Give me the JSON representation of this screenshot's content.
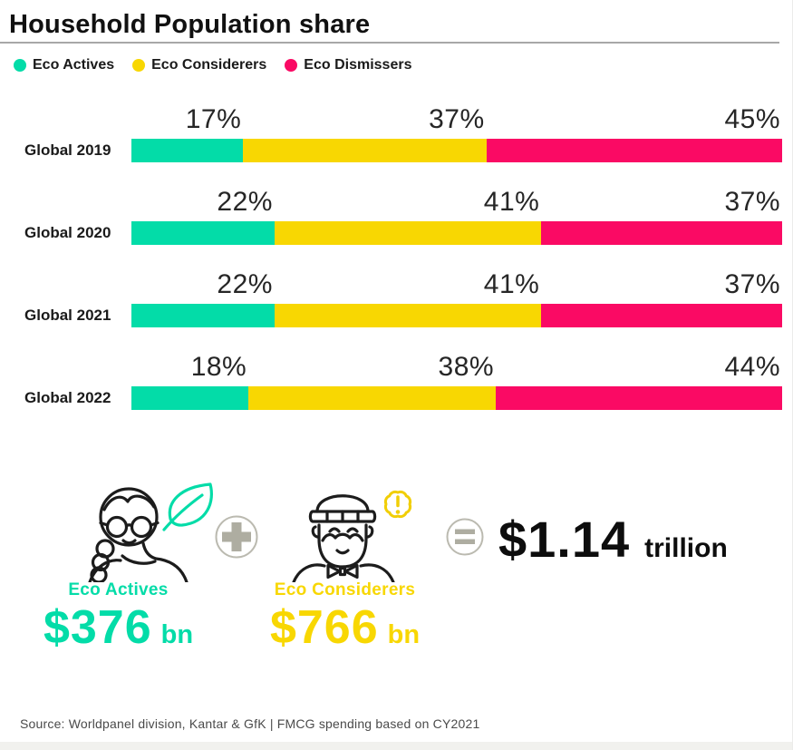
{
  "title": "Household Population share",
  "legend": [
    {
      "label": "Eco Actives",
      "color": "#03DCA8",
      "icon": "teal-dot-icon"
    },
    {
      "label": "Eco Considerers",
      "color": "#F8D702",
      "icon": "yellow-dot-icon"
    },
    {
      "label": "Eco Dismissers",
      "color": "#FA0A64",
      "icon": "pink-dot-icon"
    }
  ],
  "chart_data": {
    "type": "bar",
    "stacked": true,
    "orientation": "horizontal",
    "title": "Household Population share",
    "categories": [
      "Global 2019",
      "Global 2020",
      "Global 2021",
      "Global 2022"
    ],
    "series": [
      {
        "name": "Eco Actives",
        "color": "#03DCA8",
        "values": [
          17,
          22,
          22,
          18
        ]
      },
      {
        "name": "Eco Considerers",
        "color": "#F8D702",
        "values": [
          37,
          41,
          41,
          38
        ]
      },
      {
        "name": "Eco Dismissers",
        "color": "#FA0A64",
        "values": [
          45,
          37,
          37,
          44
        ]
      }
    ],
    "value_suffix": "%",
    "xlabel": "",
    "ylabel": "",
    "xlim": [
      0,
      100
    ],
    "grid": false,
    "legend_position": "top"
  },
  "summary": {
    "left": {
      "label": "Eco Actives",
      "value": "$376",
      "unit": "bn",
      "color": "#03DCA8",
      "icons": [
        "woman-with-braid-icon",
        "leaf-icon"
      ]
    },
    "right": {
      "label": "Eco Considerers",
      "value": "$766",
      "unit": "bn",
      "color": "#F8D702",
      "icons": [
        "man-with-beanie-icon",
        "exclamation-badge-icon"
      ]
    },
    "operators": {
      "plus": "+",
      "equals": "="
    },
    "total": {
      "value": "$1.14",
      "unit": "trillion"
    }
  },
  "source": "Source: Worldpanel division, Kantar & GfK | FMCG spending based on CY2021",
  "colors": {
    "teal": "#03DCA8",
    "yellow": "#F8D702",
    "pink": "#FA0A64",
    "icon_gray_stroke": "#bbbab0",
    "icon_gray_fill": "#aeada1",
    "rule_gray": "#a8a8a8",
    "footer_band": "#f1f1ee"
  }
}
